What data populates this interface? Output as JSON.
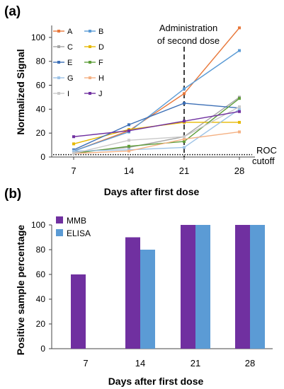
{
  "panel_a_label": "(a)",
  "panel_b_label": "(b)",
  "annotations": {
    "second_dose_line1": "Administration",
    "second_dose_line2": "of second dose",
    "roc_line1": "ROC",
    "roc_line2": "cutoff"
  },
  "chart_data": [
    {
      "type": "line",
      "x": [
        7,
        14,
        21,
        28
      ],
      "xlabel": "Days after first dose",
      "ylabel": "Normalized Signal",
      "ylim": [
        0,
        110
      ],
      "yticks": [
        0,
        20,
        40,
        60,
        80,
        100
      ],
      "xticklabels": [
        "7",
        "14",
        "21",
        "28"
      ],
      "grid": false,
      "legend_position": "top-left",
      "series": [
        {
          "name": "A",
          "color": "#e8783b",
          "values": [
            5,
            22,
            53,
            108
          ]
        },
        {
          "name": "B",
          "color": "#5b9bd5",
          "values": [
            5,
            21,
            57,
            89
          ]
        },
        {
          "name": "C",
          "color": "#a6a6a6",
          "values": [
            4,
            8,
            17,
            50
          ]
        },
        {
          "name": "D",
          "color": "#e6b800",
          "values": [
            11,
            23,
            29,
            29
          ]
        },
        {
          "name": "E",
          "color": "#3c6fb6",
          "values": [
            6,
            27,
            45,
            41
          ]
        },
        {
          "name": "F",
          "color": "#5f9e3a",
          "values": [
            3,
            9,
            13,
            49
          ]
        },
        {
          "name": "G",
          "color": "#9dc3e6",
          "values": [
            5,
            6,
            8,
            40
          ]
        },
        {
          "name": "H",
          "color": "#f4b183",
          "values": [
            3,
            5,
            15,
            21
          ]
        },
        {
          "name": "I",
          "color": "#c9c9c9",
          "values": [
            3,
            14,
            17,
            42
          ]
        },
        {
          "name": "J",
          "color": "#7030a0",
          "values": [
            17,
            22,
            30,
            38
          ]
        }
      ],
      "vline_x": 21,
      "roc_cutoff": 2
    },
    {
      "type": "bar",
      "categories": [
        "7",
        "14",
        "21",
        "28"
      ],
      "xlabel": "Days after first dose",
      "ylabel": "Positive sample percentage",
      "ylim": [
        0,
        100
      ],
      "yticks": [
        0,
        20,
        40,
        60,
        80,
        100
      ],
      "legend_position": "top-left",
      "series": [
        {
          "name": "MMB",
          "color": "#7030a0",
          "values": [
            60,
            90,
            100,
            100
          ]
        },
        {
          "name": "ELISA",
          "color": "#5b9bd5",
          "values": [
            0,
            80,
            100,
            100
          ]
        }
      ]
    }
  ]
}
